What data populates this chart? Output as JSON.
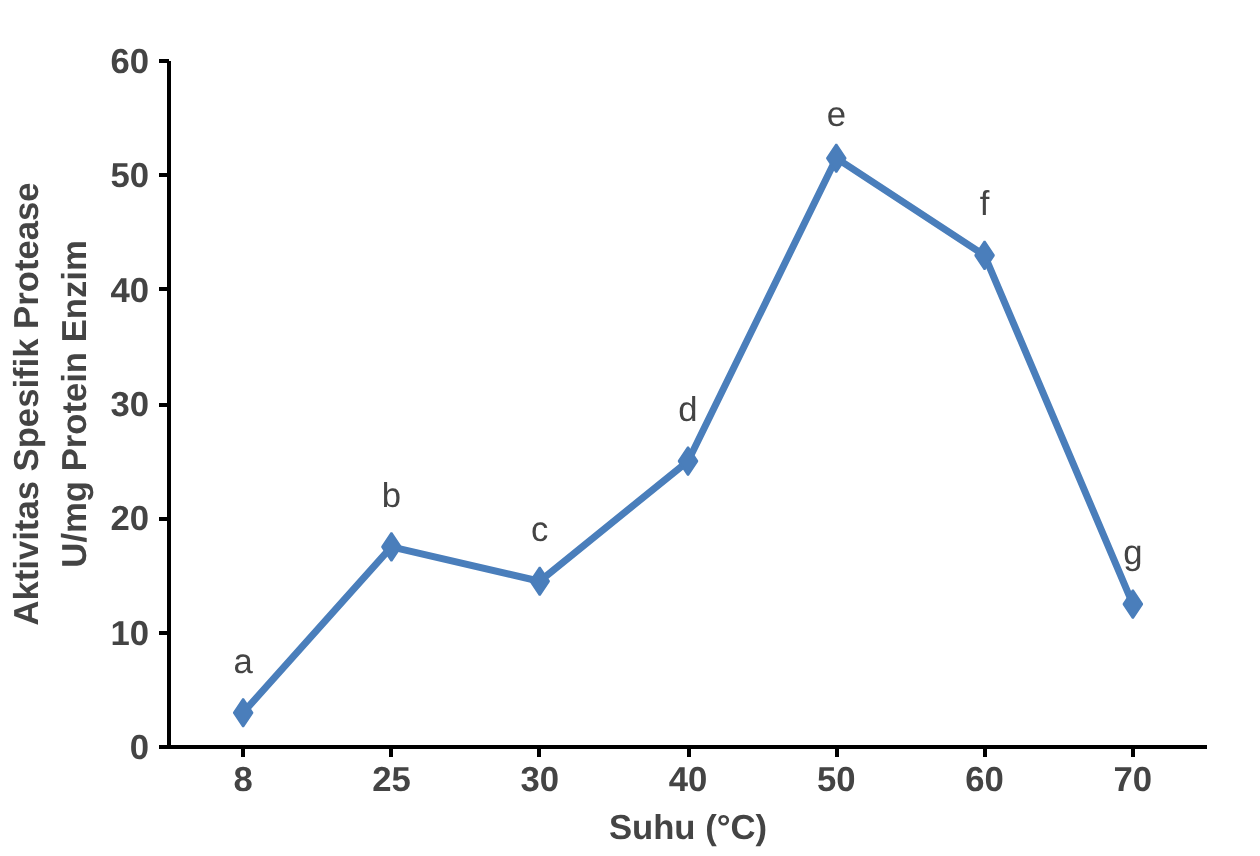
{
  "chart_data": {
    "type": "line",
    "xlabel": "Suhu (°C)",
    "ylabel": "Aktivitas Spesifik Protease\nU/mg Protein Enzim",
    "categories": [
      "8",
      "25",
      "30",
      "40",
      "50",
      "60",
      "70"
    ],
    "series": [
      {
        "color": "#4a7ebb",
        "values": [
          3,
          17.5,
          14.5,
          25,
          51.5,
          43,
          12.5
        ]
      }
    ],
    "ylim": [
      0,
      60
    ],
    "yticks": [
      0,
      10,
      20,
      30,
      40,
      50,
      60
    ],
    "grid": false,
    "marker": "diamond",
    "line_style": "solid",
    "annotations": [
      {
        "text": "a",
        "x": "8",
        "y": 3
      },
      {
        "text": "b",
        "x": "25",
        "y": 17.5
      },
      {
        "text": "c",
        "x": "30",
        "y": 14.5
      },
      {
        "text": "d",
        "x": "40",
        "y": 25
      },
      {
        "text": "e",
        "x": "50",
        "y": 51.5
      },
      {
        "text": "f",
        "x": "60",
        "y": 43
      },
      {
        "text": "g",
        "x": "70",
        "y": 12.5
      }
    ]
  }
}
